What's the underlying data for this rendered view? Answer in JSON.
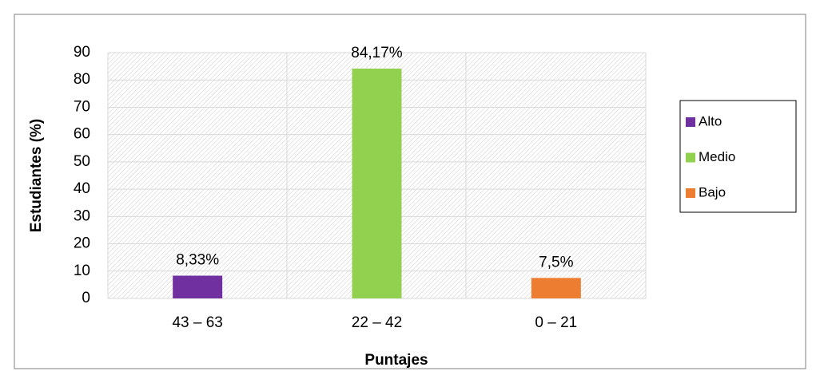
{
  "chart_data": {
    "type": "bar",
    "x_label": "Puntajes",
    "y_label": "Estudiantes (%)",
    "categories": [
      "43 – 63",
      "22 – 42",
      "0 – 21"
    ],
    "series": [
      {
        "name": "Alto",
        "color": "#7030a0",
        "values": [
          8.33,
          null,
          null
        ],
        "value_labels": [
          "8,33%",
          null,
          null
        ]
      },
      {
        "name": "Medio",
        "color": "#92d050",
        "values": [
          null,
          84.17,
          null
        ],
        "value_labels": [
          null,
          "84,17%",
          null
        ]
      },
      {
        "name": "Bajo",
        "color": "#ed7d31",
        "values": [
          null,
          null,
          7.5
        ],
        "value_labels": [
          null,
          null,
          "7,5%"
        ]
      }
    ],
    "ylim": [
      0,
      90
    ],
    "yticks": [
      0,
      10,
      20,
      30,
      40,
      50,
      60,
      70,
      80,
      90
    ],
    "grid": true,
    "legend": "right"
  }
}
